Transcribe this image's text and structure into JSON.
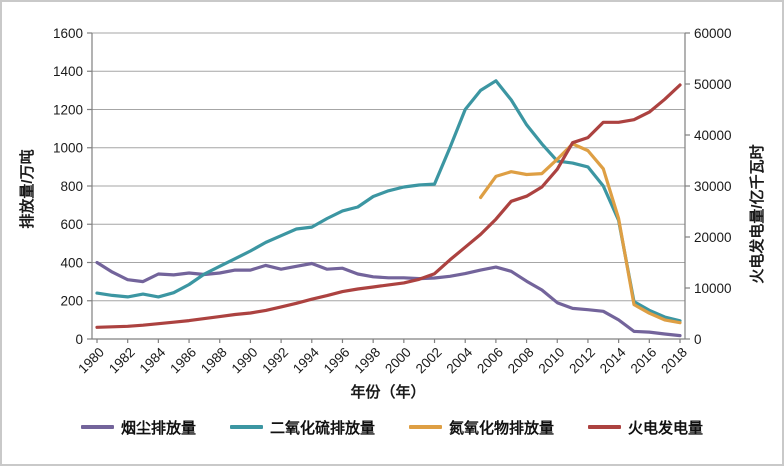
{
  "chart_data": {
    "type": "line",
    "title": "",
    "xlabel": "年份（年）",
    "grid": "horizontal-only",
    "legend_position": "bottom",
    "x_categories": [
      1980,
      1981,
      1982,
      1983,
      1984,
      1985,
      1986,
      1987,
      1988,
      1989,
      1990,
      1991,
      1992,
      1993,
      1994,
      1995,
      1996,
      1997,
      1998,
      1999,
      2000,
      2001,
      2002,
      2003,
      2004,
      2005,
      2006,
      2007,
      2008,
      2009,
      2010,
      2011,
      2012,
      2013,
      2014,
      2015,
      2016,
      2017,
      2018
    ],
    "x_tick_labels": [
      "1980",
      "1982",
      "1984",
      "1986",
      "1988",
      "1990",
      "1992",
      "1994",
      "1996",
      "1998",
      "2000",
      "2002",
      "2004",
      "2006",
      "2008",
      "2010",
      "2012",
      "2014",
      "2016",
      "2018"
    ],
    "y_left": {
      "label": "排放量/万吨",
      "min": 0,
      "max": 1600,
      "step": 200,
      "ticks": [
        "0",
        "200",
        "400",
        "600",
        "800",
        "1000",
        "1200",
        "1400",
        "1600"
      ]
    },
    "y_right": {
      "label": "火电发电量/亿千瓦时",
      "min": 0,
      "max": 60000,
      "step": 10000,
      "ticks": [
        "0",
        "10000",
        "20000",
        "30000",
        "40000",
        "50000",
        "60000"
      ]
    },
    "series": [
      {
        "key": "smoke",
        "name": "烟尘排放量",
        "axis": "left",
        "color": "#73649B",
        "values": [
          400,
          350,
          310,
          300,
          340,
          335,
          345,
          337,
          345,
          360,
          360,
          385,
          365,
          380,
          395,
          365,
          370,
          340,
          325,
          320,
          320,
          316,
          319,
          328,
          342,
          360,
          376,
          354,
          302,
          256,
          190,
          160,
          153,
          145,
          100,
          40,
          36,
          26,
          18
        ]
      },
      {
        "key": "so2",
        "name": "二氧化硫排放量",
        "axis": "left",
        "color": "#3C96A2",
        "values": [
          240,
          228,
          220,
          235,
          220,
          242,
          285,
          340,
          380,
          420,
          460,
          505,
          540,
          575,
          585,
          630,
          670,
          690,
          745,
          775,
          795,
          805,
          810,
          1000,
          1200,
          1300,
          1350,
          1250,
          1120,
          1020,
          930,
          920,
          900,
          800,
          620,
          195,
          150,
          115,
          95
        ]
      },
      {
        "key": "nox",
        "name": "氮氧化物排放量",
        "axis": "left",
        "color": "#DE9F44",
        "values": [
          null,
          null,
          null,
          null,
          null,
          null,
          null,
          null,
          null,
          null,
          null,
          null,
          null,
          null,
          null,
          null,
          null,
          null,
          null,
          null,
          null,
          null,
          null,
          null,
          null,
          740,
          850,
          875,
          860,
          865,
          940,
          1020,
          985,
          890,
          630,
          180,
          135,
          100,
          85
        ]
      },
      {
        "key": "thermal",
        "name": "火电发电量",
        "axis": "right",
        "color": "#AC4240",
        "values": [
          2300,
          2400,
          2500,
          2700,
          3000,
          3300,
          3600,
          4000,
          4400,
          4800,
          5100,
          5600,
          6300,
          7000,
          7800,
          8500,
          9300,
          9800,
          10200,
          10600,
          11000,
          11700,
          12800,
          15500,
          18000,
          20500,
          23500,
          27000,
          28000,
          29800,
          33300,
          38500,
          39500,
          42500,
          42500,
          43000,
          44500,
          47000,
          49800
        ]
      }
    ]
  },
  "colors": {
    "gridline": "#a6a6a6",
    "axis": "#808080",
    "frame_border": "#c9c9c9",
    "text": "#1a1a1a"
  }
}
